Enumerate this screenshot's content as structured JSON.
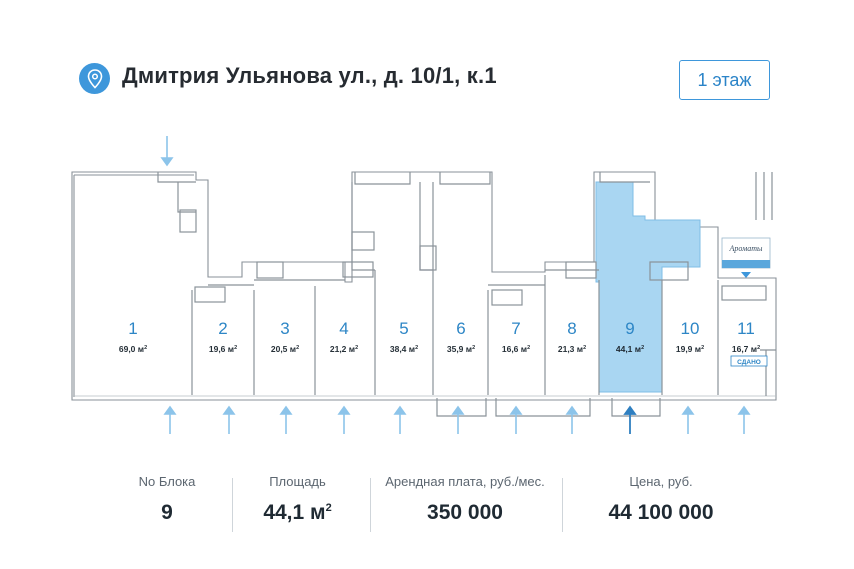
{
  "header": {
    "address": "Дмитрия Ульянова ул., д. 10/1, к.1",
    "floor_button": "1 этаж"
  },
  "icons": {
    "location": "location-pin-icon",
    "entrance": "arrow-up-icon",
    "elevator_tag": "elevator-sign-icon"
  },
  "colors": {
    "accent": "#3e97db",
    "selected_unit": "#a9d6f2",
    "unit_number": "#2d86c6",
    "rented_badge": "#2d86c6"
  },
  "plan": {
    "units": [
      {
        "num": "1",
        "area": "69,0 м",
        "sup": "2"
      },
      {
        "num": "2",
        "area": "19,6 м",
        "sup": "2"
      },
      {
        "num": "3",
        "area": "20,5 м",
        "sup": "2"
      },
      {
        "num": "4",
        "area": "21,2 м",
        "sup": "2"
      },
      {
        "num": "5",
        "area": "38,4 м",
        "sup": "2"
      },
      {
        "num": "6",
        "area": "35,9 м",
        "sup": "2"
      },
      {
        "num": "7",
        "area": "16,6 м",
        "sup": "2"
      },
      {
        "num": "8",
        "area": "21,3 м",
        "sup": "2"
      },
      {
        "num": "9",
        "area": "44,1 м",
        "sup": "2"
      },
      {
        "num": "10",
        "area": "19,9 м",
        "sup": "2"
      },
      {
        "num": "11",
        "area": "16,7 м",
        "sup": "2"
      }
    ],
    "selected_unit": "9",
    "rented_badge": "СДАНО",
    "tenant_sign": "Ароматы"
  },
  "stats": {
    "block_label": "No Блока",
    "block_value": "9",
    "area_label": "Площадь",
    "area_value": "44,1 м",
    "area_sup": "2",
    "rent_label": "Арендная плата, руб./мес.",
    "rent_value": "350 000",
    "price_label": "Цена, руб.",
    "price_value": "44 100 000"
  }
}
